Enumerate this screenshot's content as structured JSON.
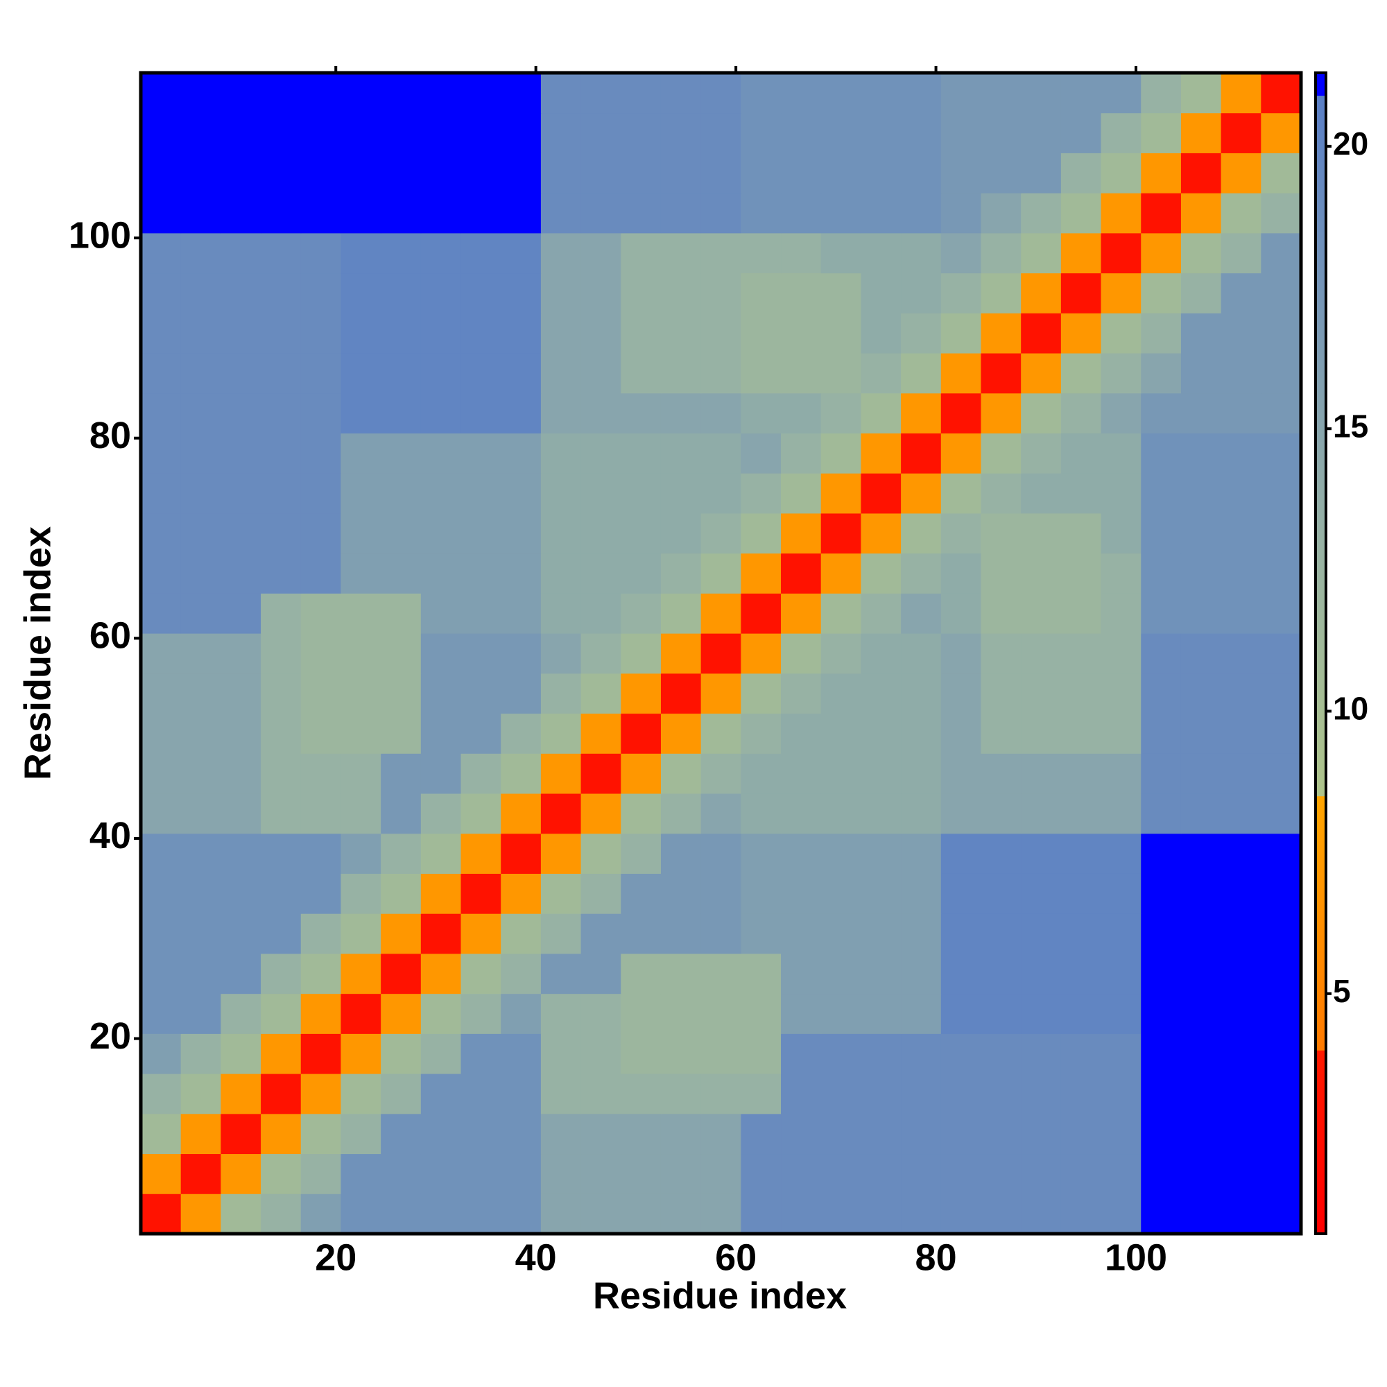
{
  "chart_data": {
    "type": "heatmap",
    "x_label": "Residue index",
    "y_label": "Residue index",
    "xlim": [
      0.5,
      116.5
    ],
    "ylim": [
      0.5,
      116.5
    ],
    "xticks": [
      20,
      40,
      60,
      80,
      100
    ],
    "yticks": [
      20,
      40,
      60,
      80,
      100
    ],
    "zlim": [
      0.75,
      21.3
    ],
    "zticks": [
      5,
      10,
      15,
      20
    ],
    "colorscale": [
      [
        0.75,
        "#ff0000"
      ],
      [
        4,
        "#ff1a00"
      ],
      [
        4,
        "#ff7a00"
      ],
      [
        8.5,
        "#ffa500"
      ],
      [
        8.5,
        "#aec48a"
      ],
      [
        13,
        "#97b2a4"
      ],
      [
        20.9,
        "#5a7fc6"
      ],
      [
        20.9,
        "#0000ff"
      ],
      [
        21.3,
        "#0000ff"
      ]
    ],
    "x": [
      2.5,
      6.5,
      10.5,
      14.5,
      18.5,
      22.5,
      26.5,
      30.5,
      34.5,
      38.5,
      42.5,
      46.5,
      50.5,
      54.5,
      58.5,
      62.5,
      66.5,
      70.5,
      74.5,
      78.5,
      82.5,
      86.5,
      90.5,
      94.5,
      98.5,
      102.5,
      106.5,
      110.5,
      114.5
    ],
    "y": [
      2.5,
      6.5,
      10.5,
      14.5,
      18.5,
      22.5,
      26.5,
      30.5,
      34.5,
      38.5,
      42.5,
      46.5,
      50.5,
      54.5,
      58.5,
      62.5,
      66.5,
      70.5,
      74.5,
      78.5,
      82.5,
      86.5,
      90.5,
      94.5,
      98.5,
      102.5,
      106.5,
      110.5,
      114.5
    ],
    "z": [
      [
        3,
        7,
        11,
        13,
        16,
        18,
        18,
        18,
        18,
        18,
        15,
        15,
        15,
        15,
        15,
        19,
        19,
        19,
        19,
        19,
        19,
        19,
        19,
        19,
        19,
        21,
        21,
        21,
        21
      ],
      [
        7,
        3,
        7,
        11,
        13,
        18,
        18,
        18,
        18,
        18,
        15,
        15,
        15,
        15,
        15,
        19,
        19,
        19,
        19,
        19,
        19,
        19,
        19,
        19,
        19,
        21,
        21,
        21,
        21
      ],
      [
        11,
        7,
        3,
        7,
        11,
        13,
        18,
        18,
        18,
        18,
        15,
        15,
        15,
        15,
        15,
        19,
        19,
        19,
        19,
        19,
        19,
        19,
        19,
        19,
        19,
        21,
        21,
        21,
        21
      ],
      [
        13,
        11,
        7,
        3,
        7,
        11,
        13,
        18,
        18,
        18,
        13,
        13,
        13,
        13,
        13,
        13,
        19,
        19,
        19,
        19,
        19,
        19,
        19,
        19,
        19,
        21,
        21,
        21,
        21
      ],
      [
        16,
        13,
        11,
        7,
        3,
        7,
        11,
        13,
        18,
        18,
        13,
        13,
        12,
        12,
        12,
        12,
        19,
        19,
        19,
        19,
        19,
        19,
        19,
        19,
        19,
        21,
        21,
        21,
        21
      ],
      [
        18,
        18,
        13,
        11,
        7,
        3,
        7,
        11,
        13,
        16,
        13,
        13,
        12,
        12,
        12,
        12,
        16,
        16,
        16,
        16,
        20,
        20,
        20,
        20,
        20,
        21,
        21,
        21,
        21
      ],
      [
        18,
        18,
        18,
        13,
        11,
        7,
        3,
        7,
        11,
        13,
        17,
        17,
        12,
        12,
        12,
        12,
        16,
        16,
        16,
        16,
        20,
        20,
        20,
        20,
        20,
        21,
        21,
        21,
        21
      ],
      [
        18,
        18,
        18,
        18,
        13,
        11,
        7,
        3,
        7,
        11,
        13,
        17,
        17,
        17,
        17,
        16,
        16,
        16,
        16,
        16,
        20,
        20,
        20,
        20,
        20,
        21,
        21,
        21,
        21
      ],
      [
        18,
        18,
        18,
        18,
        18,
        13,
        11,
        7,
        3,
        7,
        11,
        13,
        17,
        17,
        17,
        16,
        16,
        16,
        16,
        16,
        20,
        20,
        20,
        20,
        20,
        21,
        21,
        21,
        21
      ],
      [
        18,
        18,
        18,
        18,
        18,
        16,
        13,
        11,
        7,
        3,
        7,
        11,
        13,
        17,
        17,
        16,
        16,
        16,
        16,
        16,
        20,
        20,
        20,
        20,
        20,
        21,
        21,
        21,
        21
      ],
      [
        15,
        15,
        15,
        13,
        13,
        13,
        17,
        13,
        11,
        7,
        3,
        7,
        11,
        13,
        15,
        14,
        14,
        14,
        14,
        14,
        15,
        15,
        15,
        15,
        15,
        19,
        19,
        19,
        19
      ],
      [
        15,
        15,
        15,
        13,
        13,
        13,
        17,
        17,
        13,
        11,
        7,
        3,
        7,
        11,
        13,
        14,
        14,
        14,
        14,
        14,
        15,
        15,
        15,
        15,
        15,
        19,
        19,
        19,
        19
      ],
      [
        15,
        15,
        15,
        13,
        12,
        12,
        12,
        17,
        17,
        13,
        11,
        7,
        3,
        7,
        11,
        13,
        14,
        14,
        14,
        14,
        15,
        13,
        13,
        13,
        13,
        19,
        19,
        19,
        19
      ],
      [
        15,
        15,
        15,
        13,
        12,
        12,
        12,
        17,
        17,
        17,
        13,
        11,
        7,
        3,
        7,
        11,
        13,
        14,
        14,
        14,
        15,
        13,
        13,
        13,
        13,
        19,
        19,
        19,
        19
      ],
      [
        15,
        15,
        15,
        13,
        12,
        12,
        12,
        17,
        17,
        17,
        15,
        13,
        11,
        7,
        3,
        7,
        11,
        13,
        14,
        14,
        15,
        13,
        13,
        13,
        13,
        19,
        19,
        19,
        19
      ],
      [
        19,
        19,
        19,
        13,
        12,
        12,
        12,
        16,
        16,
        16,
        14,
        14,
        13,
        11,
        7,
        3,
        7,
        11,
        13,
        15,
        14,
        12,
        12,
        12,
        13,
        18,
        18,
        18,
        18
      ],
      [
        19,
        19,
        19,
        19,
        19,
        16,
        16,
        16,
        16,
        16,
        14,
        14,
        14,
        13,
        11,
        7,
        3,
        7,
        11,
        13,
        14,
        12,
        12,
        12,
        13,
        18,
        18,
        18,
        18
      ],
      [
        19,
        19,
        19,
        19,
        19,
        16,
        16,
        16,
        16,
        16,
        14,
        14,
        14,
        14,
        13,
        11,
        7,
        3,
        7,
        11,
        13,
        12,
        12,
        12,
        14,
        18,
        18,
        18,
        18
      ],
      [
        19,
        19,
        19,
        19,
        19,
        16,
        16,
        16,
        16,
        16,
        14,
        14,
        14,
        14,
        14,
        13,
        11,
        7,
        3,
        7,
        11,
        13,
        14,
        14,
        14,
        18,
        18,
        18,
        18
      ],
      [
        19,
        19,
        19,
        19,
        19,
        16,
        16,
        16,
        16,
        16,
        14,
        14,
        14,
        14,
        14,
        15,
        13,
        11,
        7,
        3,
        7,
        11,
        13,
        14,
        14,
        18,
        18,
        18,
        18
      ],
      [
        19,
        19,
        19,
        19,
        19,
        20,
        20,
        20,
        20,
        20,
        15,
        15,
        15,
        15,
        15,
        14,
        14,
        13,
        11,
        7,
        3,
        7,
        11,
        13,
        15,
        17,
        17,
        17,
        17
      ],
      [
        19,
        19,
        19,
        19,
        19,
        20,
        20,
        20,
        20,
        20,
        15,
        15,
        13,
        13,
        13,
        12,
        12,
        12,
        13,
        11,
        7,
        3,
        7,
        11,
        13,
        15,
        17,
        17,
        17
      ],
      [
        19,
        19,
        19,
        19,
        19,
        20,
        20,
        20,
        20,
        20,
        15,
        15,
        13,
        13,
        13,
        12,
        12,
        12,
        14,
        13,
        11,
        7,
        3,
        7,
        11,
        13,
        17,
        17,
        17
      ],
      [
        19,
        19,
        19,
        19,
        19,
        20,
        20,
        20,
        20,
        20,
        15,
        15,
        13,
        13,
        13,
        12,
        12,
        12,
        14,
        14,
        13,
        11,
        7,
        3,
        7,
        11,
        13,
        17,
        17
      ],
      [
        19,
        19,
        19,
        19,
        19,
        20,
        20,
        20,
        20,
        20,
        15,
        15,
        13,
        13,
        13,
        13,
        13,
        14,
        14,
        14,
        15,
        13,
        11,
        7,
        3,
        7,
        11,
        13,
        17
      ],
      [
        21,
        21,
        21,
        21,
        21,
        21,
        21,
        21,
        21,
        21,
        19,
        19,
        19,
        19,
        19,
        18,
        18,
        18,
        18,
        18,
        17,
        15,
        13,
        11,
        7,
        3,
        7,
        11,
        13
      ],
      [
        21,
        21,
        21,
        21,
        21,
        21,
        21,
        21,
        21,
        21,
        19,
        19,
        19,
        19,
        19,
        18,
        18,
        18,
        18,
        18,
        17,
        17,
        17,
        13,
        11,
        7,
        3,
        7,
        11
      ],
      [
        21,
        21,
        21,
        21,
        21,
        21,
        21,
        21,
        21,
        21,
        19,
        19,
        19,
        19,
        19,
        18,
        18,
        18,
        18,
        18,
        17,
        17,
        17,
        17,
        13,
        11,
        7,
        3,
        7
      ],
      [
        21,
        21,
        21,
        21,
        21,
        21,
        21,
        21,
        21,
        21,
        19,
        19,
        19,
        19,
        19,
        18,
        18,
        18,
        18,
        18,
        17,
        17,
        17,
        17,
        17,
        13,
        11,
        7,
        3
      ]
    ]
  }
}
